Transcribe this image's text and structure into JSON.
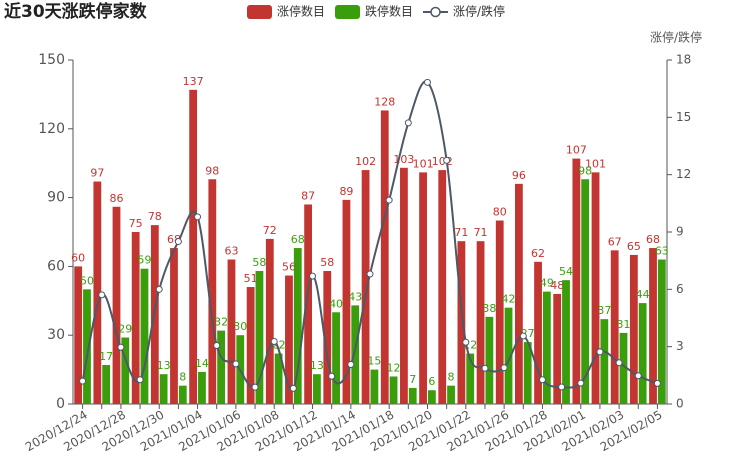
{
  "chart_data": {
    "type": "bar-line",
    "title": "近30天涨跌停家数",
    "y2_axis_label": "涨停/跌停",
    "categories": [
      "2020/12/24",
      null,
      "2020/12/28",
      null,
      "2020/12/30",
      null,
      "2021/01/04",
      null,
      "2021/01/06",
      null,
      "2021/01/08",
      null,
      "2021/01/12",
      null,
      "2021/01/14",
      null,
      "2021/01/18",
      null,
      "2021/01/20",
      null,
      "2021/01/22",
      null,
      "2021/01/26",
      null,
      "2021/01/28",
      null,
      "2021/02/01",
      null,
      "2021/02/03",
      null,
      "2021/02/05"
    ],
    "series": [
      {
        "name": "涨停数目",
        "type": "bar",
        "color": "#c23531",
        "values": [
          60,
          97,
          86,
          75,
          78,
          68,
          137,
          98,
          63,
          51,
          72,
          56,
          87,
          58,
          89,
          102,
          128,
          103,
          101,
          102,
          71,
          71,
          80,
          96,
          62,
          48,
          107,
          101,
          67,
          65,
          68
        ]
      },
      {
        "name": "跌停数目",
        "type": "bar",
        "color": "#3a9e0c",
        "values": [
          50,
          17,
          29,
          59,
          13,
          8,
          14,
          32,
          30,
          58,
          22,
          68,
          13,
          40,
          43,
          15,
          12,
          7,
          6,
          8,
          22,
          38,
          42,
          27,
          49,
          54,
          98,
          37,
          31,
          44,
          63
        ]
      },
      {
        "name": "涨停/跌停",
        "type": "line",
        "axis": "y2",
        "color": "#4d5868",
        "values": [
          1.2,
          5.71,
          2.97,
          1.27,
          6.0,
          8.5,
          9.79,
          3.06,
          2.1,
          0.88,
          3.27,
          0.82,
          6.69,
          1.45,
          2.07,
          6.8,
          10.67,
          14.71,
          16.83,
          12.75,
          3.23,
          1.87,
          1.9,
          3.56,
          1.27,
          0.89,
          1.09,
          2.73,
          2.16,
          1.48,
          1.08
        ]
      }
    ],
    "ylim": [
      0,
      150
    ],
    "yticks": [
      0,
      30,
      60,
      90,
      120,
      150
    ],
    "y2lim": [
      0,
      18
    ],
    "y2ticks": [
      0,
      3,
      6,
      9,
      12,
      15,
      18
    ]
  }
}
